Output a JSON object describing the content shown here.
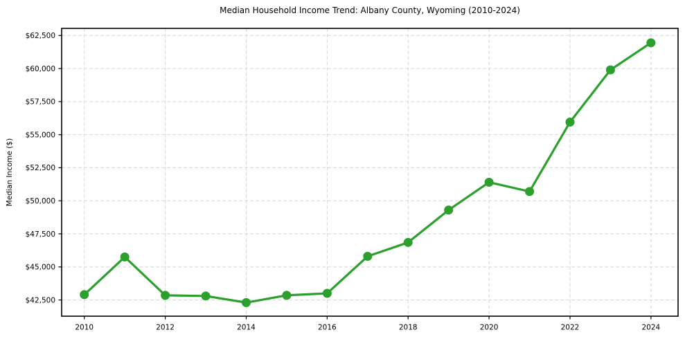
{
  "chart_data": {
    "type": "line",
    "title": "Median Household Income Trend: Albany County, Wyoming (2010-2024)",
    "xlabel": "",
    "ylabel": "Median Income ($)",
    "x": [
      2010,
      2011,
      2012,
      2013,
      2014,
      2015,
      2016,
      2017,
      2018,
      2019,
      2020,
      2021,
      2022,
      2023,
      2024
    ],
    "series": [
      {
        "name": "Median Household Income",
        "values": [
          42900,
          45750,
          42850,
          42800,
          42300,
          42850,
          43000,
          45800,
          46850,
          49300,
          51400,
          50700,
          55950,
          59900,
          61950
        ]
      }
    ],
    "x_ticks": {
      "values": [
        2010,
        2012,
        2014,
        2016,
        2018,
        2020,
        2022,
        2024
      ],
      "labels": [
        "2010",
        "2012",
        "2014",
        "2016",
        "2018",
        "2020",
        "2022",
        "2024"
      ]
    },
    "y_ticks": {
      "values": [
        42500,
        45000,
        47500,
        50000,
        52500,
        55000,
        57500,
        60000,
        62500
      ],
      "labels": [
        "$42,500",
        "$45,000",
        "$47,500",
        "$50,000",
        "$52,500",
        "$55,000",
        "$57,500",
        "$60,000",
        "$62,500"
      ]
    },
    "xlim": [
      2009.44,
      2024.67
    ],
    "ylim": [
      41274,
      63039
    ],
    "grid": true,
    "grid_style": "dashed",
    "legend": "none",
    "colors": {
      "line": "#2ca02c",
      "marker": "#2ca02c",
      "grid": "#d6d6d6",
      "spine": "#000000",
      "background": "#ffffff"
    }
  }
}
